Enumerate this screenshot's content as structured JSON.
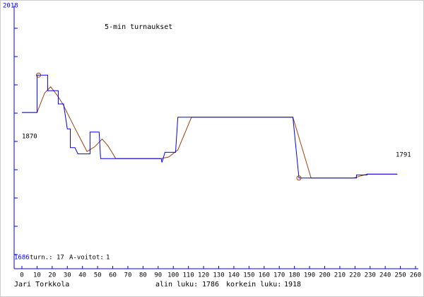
{
  "chart_data": {
    "type": "line",
    "title": "5-min turnaukset",
    "series": [
      {
        "color": "#0000ff",
        "x": [
          0,
          10,
          10,
          17,
          17,
          24,
          24,
          27.5,
          30,
          32,
          32,
          35,
          37,
          45,
          45,
          51,
          52,
          92,
          92.5,
          94.5,
          101.5,
          103,
          179,
          183,
          221,
          221,
          228,
          228,
          248
        ],
        "values": [
          1870,
          1870,
          1918,
          1918,
          1898,
          1898,
          1881,
          1881,
          1849,
          1849,
          1825,
          1825,
          1817,
          1817,
          1845,
          1845,
          1811,
          1811,
          1806,
          1819,
          1819,
          1864,
          1864,
          1786,
          1786,
          1790,
          1790,
          1791,
          1791
        ]
      },
      {
        "color": "#a0400a",
        "x": [
          0,
          10,
          15,
          19,
          23,
          27,
          35,
          43,
          48,
          53,
          57,
          62,
          92,
          97,
          103,
          112,
          179,
          185,
          191,
          219,
          228,
          248
        ],
        "values": [
          1870,
          1870,
          1895,
          1903,
          1893,
          1881,
          1850,
          1820,
          1826,
          1836,
          1827,
          1811,
          1811,
          1813,
          1822,
          1864,
          1864,
          1825,
          1786,
          1786,
          1791,
          1791
        ]
      }
    ],
    "extremes": [
      {
        "label": "alin luku:",
        "x": 183,
        "value": 1786
      },
      {
        "label": "korkein luku:",
        "x": 11,
        "value": 1918
      }
    ],
    "games": {
      "label": "turn.:",
      "value": 17
    },
    "wins": {
      "label": "A-voitot:",
      "value": 1
    },
    "author": "Jari Torkkola",
    "xlim": [
      0,
      260
    ],
    "xticks": [
      0,
      10,
      20,
      30,
      40,
      50,
      60,
      70,
      80,
      90,
      100,
      110,
      120,
      130,
      140,
      150,
      160,
      170,
      180,
      190,
      200,
      210,
      220,
      230,
      240,
      250,
      260
    ],
    "ylim": [
      1686,
      2018
    ]
  }
}
